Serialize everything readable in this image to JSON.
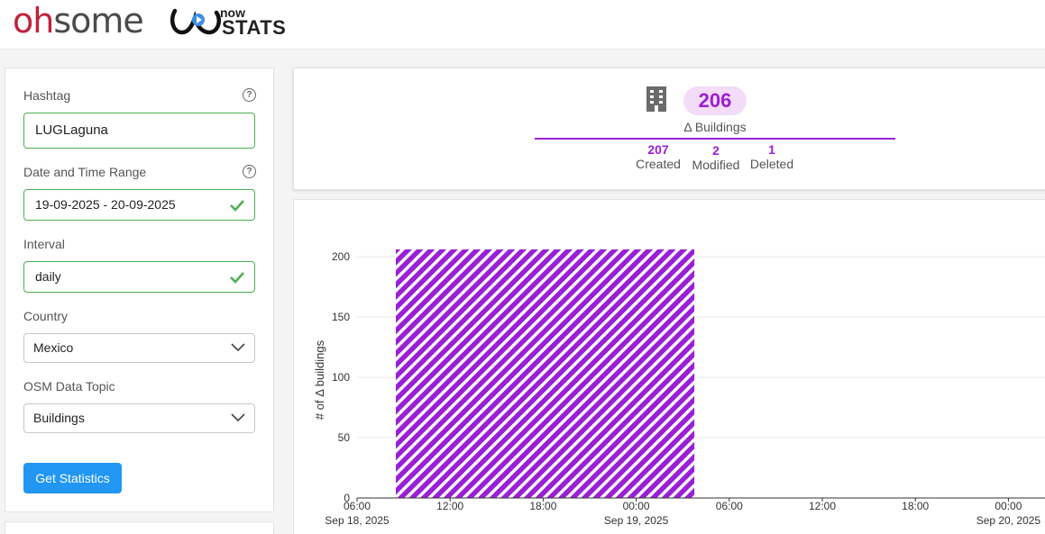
{
  "header": {
    "brand_part1": "oh",
    "brand_part2": "some",
    "brand_now": "now",
    "brand_stats": "STATS"
  },
  "sidebar": {
    "hashtag": {
      "label": "Hashtag",
      "value": "LUGLaguna"
    },
    "date_range": {
      "label": "Date and Time Range",
      "value": "19-09-2025 - 20-09-2025"
    },
    "interval": {
      "label": "Interval",
      "value": "daily"
    },
    "country": {
      "label": "Country",
      "value": "Mexico"
    },
    "topic": {
      "label": "OSM Data Topic",
      "value": "Buildings"
    },
    "submit_label": "Get Statistics"
  },
  "stats": {
    "total": "206",
    "total_label": "Δ Buildings",
    "created": "207",
    "created_label": "Created",
    "modified": "2",
    "modified_label": "Modified",
    "deleted": "1",
    "deleted_label": "Deleted"
  },
  "colors": {
    "accent": "#9a1fd6",
    "valid": "#4caf50",
    "button": "#2196f3"
  },
  "chart_data": {
    "type": "bar",
    "ylabel": "# of Δ buildings",
    "ylim": [
      0,
      200
    ],
    "yticks": [
      0,
      50,
      100,
      150,
      200
    ],
    "xticks": [
      {
        "hours": 0,
        "time": "06:00",
        "date": "Sep 18, 2025"
      },
      {
        "hours": 6,
        "time": "12:00",
        "date": ""
      },
      {
        "hours": 12,
        "time": "18:00",
        "date": ""
      },
      {
        "hours": 18,
        "time": "00:00",
        "date": "Sep 19, 2025"
      },
      {
        "hours": 24,
        "time": "06:00",
        "date": ""
      },
      {
        "hours": 30,
        "time": "12:00",
        "date": ""
      },
      {
        "hours": 36,
        "time": "18:00",
        "date": ""
      },
      {
        "hours": 42,
        "time": "00:00",
        "date": "Sep 20, 2025"
      }
    ],
    "bars": [
      {
        "start": "Sep 18, 2025 08:30",
        "end": "Sep 19, 2025 03:45",
        "value": 206
      }
    ]
  }
}
